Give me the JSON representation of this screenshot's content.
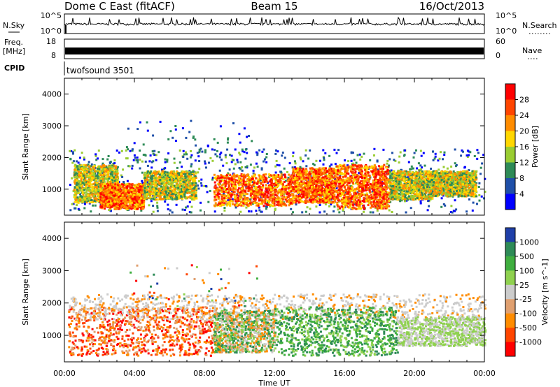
{
  "header": {
    "station": "Dome C East (fitACF)",
    "beam": "Beam 15",
    "date": "16/Oct/2013"
  },
  "strips": {
    "nsky": {
      "label": "N.Sky",
      "left_ticks": [
        "10^5",
        "10^0"
      ],
      "right_ticks": [
        "10^5",
        "10^0"
      ],
      "right_label": "N.Search"
    },
    "freq": {
      "label_top": "Freq.",
      "label_bottom": "[MHz]",
      "left_ticks": [
        "18",
        "8"
      ],
      "right_ticks": [
        "60",
        "0"
      ],
      "right_label": "Nave"
    },
    "cpid": {
      "label": "CPID",
      "value": "twofsound 3501"
    }
  },
  "chart_data": [
    {
      "type": "heatmap",
      "name": "power",
      "ylabel": "Slant Range [km]",
      "xlabel": "",
      "y_ticks": [
        1000,
        2000,
        3000,
        4000
      ],
      "ylim": [
        180,
        4500
      ],
      "xlim_hours": [
        0,
        24
      ],
      "colorbar": {
        "label": "Power [dB]",
        "ticks": [
          "28",
          "24",
          "20",
          "16",
          "12",
          "8",
          "4"
        ],
        "colors": [
          "#ff0000",
          "#ff4500",
          "#ff8c00",
          "#ffd700",
          "#9acd32",
          "#2e8b57",
          "#1f4fa8",
          "#0000ff"
        ]
      },
      "regions": [
        {
          "h0": 0.2,
          "h1": 24,
          "r0": 300,
          "r1": 2300,
          "level": "low"
        },
        {
          "h0": 0.5,
          "h1": 3,
          "r0": 600,
          "r1": 1800,
          "level": "mid"
        },
        {
          "h0": 2,
          "h1": 4.5,
          "r0": 400,
          "r1": 1200,
          "level": "high"
        },
        {
          "h0": 4.5,
          "h1": 7.5,
          "r0": 700,
          "r1": 1600,
          "level": "mid"
        },
        {
          "h0": 8.5,
          "h1": 13,
          "r0": 500,
          "r1": 1500,
          "level": "high"
        },
        {
          "h0": 13,
          "h1": 15.5,
          "r0": 600,
          "r1": 1700,
          "level": "high"
        },
        {
          "h0": 15.5,
          "h1": 18.5,
          "r0": 400,
          "r1": 1800,
          "level": "high"
        },
        {
          "h0": 18.5,
          "h1": 21,
          "r0": 700,
          "r1": 1600,
          "level": "mid"
        },
        {
          "h0": 21,
          "h1": 23.5,
          "r0": 800,
          "r1": 1600,
          "level": "mid"
        },
        {
          "h0": 3.5,
          "h1": 11,
          "r0": 1800,
          "r1": 3200,
          "level": "sparse"
        }
      ]
    },
    {
      "type": "heatmap",
      "name": "velocity",
      "ylabel": "Slant Range [km]",
      "xlabel": "Time UT",
      "x_ticks": [
        "00:00",
        "04:00",
        "08:00",
        "12:00",
        "16:00",
        "20:00",
        "00:00"
      ],
      "y_ticks": [
        1000,
        2000,
        3000,
        4000
      ],
      "ylim": [
        180,
        4500
      ],
      "xlim_hours": [
        0,
        24
      ],
      "colorbar": {
        "label": "Velocity [m s^-1]",
        "ticks": [
          "1000",
          "500",
          "100",
          "25",
          "-25",
          "-100",
          "-500",
          "-1000"
        ],
        "colors": [
          "#1f3fa8",
          "#2e8b57",
          "#3fae3f",
          "#8fd14f",
          "#cccccc",
          "#e0a070",
          "#ff8c00",
          "#ff4500",
          "#ff0000"
        ]
      },
      "regions": [
        {
          "h0": 0.2,
          "h1": 8.5,
          "r0": 400,
          "r1": 1900,
          "level": "neg"
        },
        {
          "h0": 0.2,
          "h1": 24,
          "r0": 1500,
          "r1": 2300,
          "level": "grey"
        },
        {
          "h0": 8.5,
          "h1": 12,
          "r0": 500,
          "r1": 1800,
          "level": "mix"
        },
        {
          "h0": 12,
          "h1": 19,
          "r0": 400,
          "r1": 1900,
          "level": "pos"
        },
        {
          "h0": 19,
          "h1": 24,
          "r0": 700,
          "r1": 1600,
          "level": "pos-light"
        },
        {
          "h0": 3.5,
          "h1": 11,
          "r0": 1800,
          "r1": 3200,
          "level": "sparse"
        }
      ]
    }
  ]
}
